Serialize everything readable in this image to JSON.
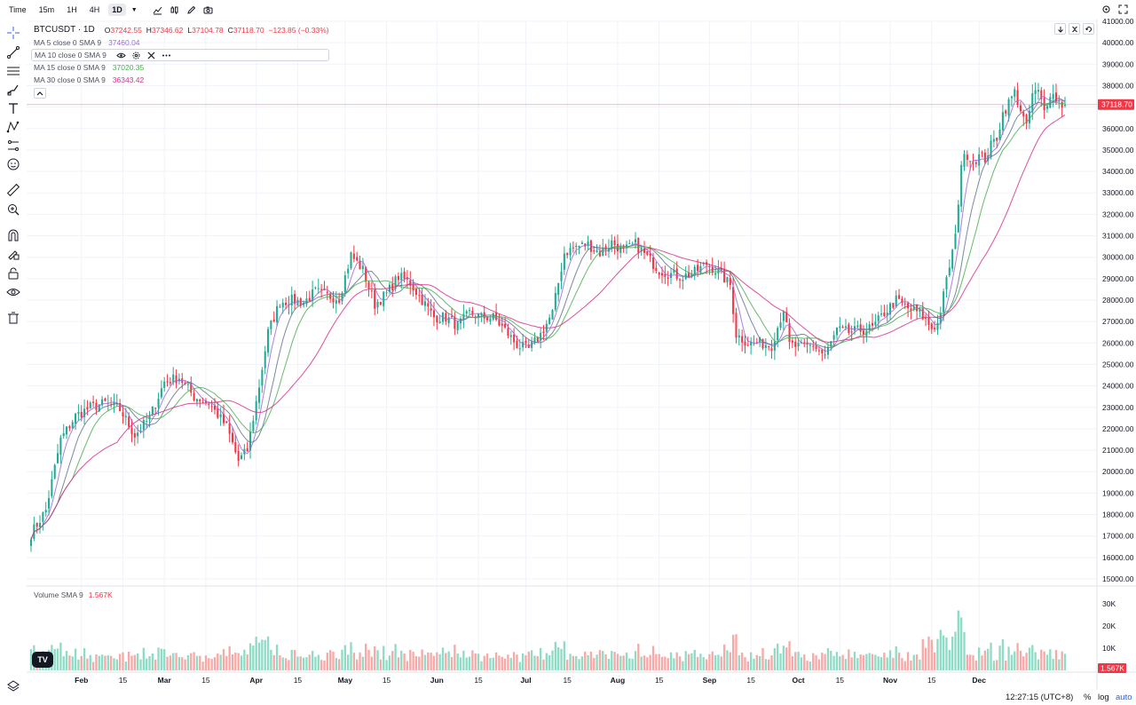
{
  "topbar": {
    "time_label": "Time",
    "timeframes": [
      "15m",
      "1H",
      "4H",
      "1D"
    ],
    "active_timeframe": "1D",
    "icons": [
      "chart-type-icon",
      "candles-icon",
      "pencil-icon",
      "camera-icon"
    ]
  },
  "legend": {
    "symbol": "BTCUSDT · 1D",
    "open_label": "O",
    "open": "37242.55",
    "high_label": "H",
    "high": "37346.62",
    "low_label": "L",
    "low": "37104.78",
    "close_label": "C",
    "close": "37118.70",
    "change": "−123.85 (−0.33%)",
    "ma_rows": [
      {
        "name": "MA 5 close 0 SMA 9",
        "value": "37460.04",
        "color": "#9c6ade"
      },
      {
        "name": "MA 10 close 0 SMA 9",
        "value": "",
        "color": "#64748b"
      },
      {
        "name": "MA 15 close 0 SMA 9",
        "value": "37020.35",
        "color": "#4caf50"
      },
      {
        "name": "MA 30 close 0 SMA 9",
        "value": "36343.42",
        "color": "#d6338a"
      }
    ]
  },
  "volume_legend": {
    "name": "Volume SMA 9",
    "value": "1.567K"
  },
  "price_badge": "37118.70",
  "volume_badge": "1.567K",
  "bottom": {
    "clock": "12:27:15 (UTC+8)",
    "percent": "%",
    "log": "log",
    "auto": "auto"
  },
  "colors": {
    "up": "#26a69a",
    "up_fill": "#22ab94",
    "down": "#f23645",
    "vol_up": "#8fdcc6",
    "vol_down": "#f7a9a7",
    "price_line": "#f23645"
  },
  "chart_data": {
    "type": "candlestick",
    "symbol": "BTCUSDT",
    "interval": "1D",
    "price_axis": {
      "min": 15000,
      "max": 41000,
      "ticks": [
        "15000.00",
        "16000.00",
        "17000.00",
        "18000.00",
        "19000.00",
        "20000.00",
        "21000.00",
        "22000.00",
        "23000.00",
        "24000.00",
        "25000.00",
        "26000.00",
        "27000.00",
        "28000.00",
        "29000.00",
        "30000.00",
        "31000.00",
        "32000.00",
        "33000.00",
        "34000.00",
        "35000.00",
        "36000.00",
        "37000.00",
        "38000.00",
        "39000.00",
        "40000.00",
        "41000.00"
      ]
    },
    "volume_axis": {
      "ticks": [
        "10K",
        "20K",
        "30K"
      ],
      "tick_values": [
        10000,
        20000,
        30000
      ]
    },
    "time_axis": {
      "labels": [
        "Feb",
        "15",
        "Mar",
        "15",
        "Apr",
        "15",
        "May",
        "15",
        "Jun",
        "15",
        "Jul",
        "15",
        "Aug",
        "15",
        "Sep",
        "15",
        "Oct",
        "15",
        "Nov",
        "15",
        "Dec"
      ],
      "label_days": [
        31,
        45,
        59,
        73,
        90,
        104,
        120,
        134,
        151,
        165,
        181,
        195,
        212,
        226,
        243,
        257,
        273,
        287,
        304,
        318,
        334
      ]
    },
    "days": 330,
    "close_anchors": [
      [
        0,
        17100
      ],
      [
        5,
        18200
      ],
      [
        10,
        21500
      ],
      [
        15,
        22600
      ],
      [
        20,
        23000
      ],
      [
        25,
        23200
      ],
      [
        30,
        22900
      ],
      [
        35,
        21700
      ],
      [
        40,
        22500
      ],
      [
        45,
        24200
      ],
      [
        50,
        24400
      ],
      [
        55,
        23500
      ],
      [
        60,
        23200
      ],
      [
        66,
        22100
      ],
      [
        70,
        20500
      ],
      [
        73,
        21000
      ],
      [
        77,
        24000
      ],
      [
        80,
        26500
      ],
      [
        84,
        27900
      ],
      [
        88,
        28000
      ],
      [
        92,
        27900
      ],
      [
        96,
        28400
      ],
      [
        100,
        28200
      ],
      [
        104,
        28100
      ],
      [
        108,
        30100
      ],
      [
        112,
        29400
      ],
      [
        116,
        27800
      ],
      [
        120,
        28300
      ],
      [
        124,
        29100
      ],
      [
        128,
        28800
      ],
      [
        132,
        28000
      ],
      [
        136,
        27200
      ],
      [
        140,
        27200
      ],
      [
        144,
        26800
      ],
      [
        148,
        27400
      ],
      [
        152,
        27200
      ],
      [
        156,
        27200
      ],
      [
        160,
        26600
      ],
      [
        164,
        25900
      ],
      [
        168,
        25700
      ],
      [
        172,
        26400
      ],
      [
        176,
        27400
      ],
      [
        180,
        30200
      ],
      [
        184,
        30500
      ],
      [
        188,
        30600
      ],
      [
        192,
        30200
      ],
      [
        196,
        30700
      ],
      [
        200,
        30300
      ],
      [
        204,
        30600
      ],
      [
        208,
        30000
      ],
      [
        212,
        29400
      ],
      [
        216,
        29200
      ],
      [
        220,
        29100
      ],
      [
        224,
        29300
      ],
      [
        228,
        29700
      ],
      [
        232,
        29300
      ],
      [
        236,
        28700
      ],
      [
        238,
        26400
      ],
      [
        242,
        26000
      ],
      [
        246,
        26000
      ],
      [
        250,
        25900
      ],
      [
        254,
        27600
      ],
      [
        256,
        25900
      ],
      [
        260,
        25800
      ],
      [
        264,
        25900
      ],
      [
        268,
        25400
      ],
      [
        272,
        26600
      ],
      [
        276,
        26500
      ],
      [
        280,
        26600
      ],
      [
        284,
        26700
      ],
      [
        288,
        27400
      ],
      [
        292,
        28000
      ],
      [
        296,
        27600
      ],
      [
        300,
        27400
      ],
      [
        304,
        26700
      ],
      [
        306,
        26900
      ],
      [
        308,
        28200
      ],
      [
        310,
        29600
      ],
      [
        312,
        30900
      ],
      [
        314,
        34400
      ],
      [
        316,
        34800
      ],
      [
        318,
        34500
      ],
      [
        320,
        34700
      ],
      [
        322,
        34600
      ],
      [
        324,
        35200
      ],
      [
        326,
        35600
      ],
      [
        328,
        36700
      ],
      [
        330,
        37200
      ],
      [
        332,
        37700
      ],
      [
        334,
        36900
      ],
      [
        336,
        36000
      ],
      [
        338,
        37600
      ],
      [
        340,
        37700
      ],
      [
        342,
        36800
      ],
      [
        344,
        37700
      ],
      [
        346,
        37400
      ],
      [
        348,
        37100
      ],
      [
        349,
        37118.7
      ]
    ],
    "last_close": 37118.7,
    "series": [
      {
        "name": "MA 5 close 0 SMA 9",
        "period": 5,
        "last": 37460.04,
        "color": "#9c6ade"
      },
      {
        "name": "MA 10 close 0 SMA 9",
        "period": 10,
        "color": "#64748b"
      },
      {
        "name": "MA 15 close 0 SMA 9",
        "period": 15,
        "last": 37020.35,
        "color": "#4caf50"
      },
      {
        "name": "MA 30 close 0 SMA 9",
        "period": 30,
        "last": 36343.42,
        "color": "#d6338a"
      }
    ],
    "volume_sma9_last": 1567
  }
}
